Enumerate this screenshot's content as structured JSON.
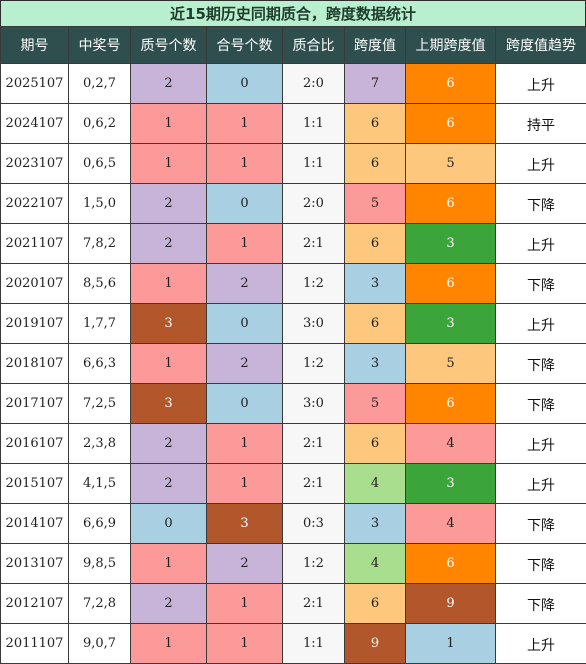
{
  "title": "近15期历史同期质合，跨度数据统计",
  "headers": [
    "期号",
    "中奖号",
    "质号个数",
    "合号个数",
    "质合比",
    "跨度值",
    "上期跨度值",
    "跨度值趋势"
  ],
  "rows": [
    {
      "period": "2025107",
      "numbers": "0,2,7",
      "prime_count": "2",
      "composite_count": "0",
      "ratio": "2:0",
      "span": "7",
      "prev_span": "6",
      "trend": "上升",
      "colors": [
        "purple",
        "blue",
        "plain",
        "purple",
        "orange"
      ]
    },
    {
      "period": "2024107",
      "numbers": "0,6,2",
      "prime_count": "1",
      "composite_count": "1",
      "ratio": "1:1",
      "span": "6",
      "prev_span": "6",
      "trend": "持平",
      "colors": [
        "pink",
        "pink",
        "plain",
        "sand",
        "orange"
      ]
    },
    {
      "period": "2023107",
      "numbers": "0,6,5",
      "prime_count": "1",
      "composite_count": "1",
      "ratio": "1:1",
      "span": "6",
      "prev_span": "5",
      "trend": "上升",
      "colors": [
        "pink",
        "pink",
        "plain",
        "sand",
        "sand"
      ]
    },
    {
      "period": "2022107",
      "numbers": "1,5,0",
      "prime_count": "2",
      "composite_count": "0",
      "ratio": "2:0",
      "span": "5",
      "prev_span": "6",
      "trend": "下降",
      "colors": [
        "purple",
        "blue",
        "plain",
        "pink",
        "orange"
      ]
    },
    {
      "period": "2021107",
      "numbers": "7,8,2",
      "prime_count": "2",
      "composite_count": "1",
      "ratio": "2:1",
      "span": "6",
      "prev_span": "3",
      "trend": "上升",
      "colors": [
        "purple",
        "pink",
        "plain",
        "sand",
        "green-d"
      ]
    },
    {
      "period": "2020107",
      "numbers": "8,5,6",
      "prime_count": "1",
      "composite_count": "2",
      "ratio": "1:2",
      "span": "3",
      "prev_span": "6",
      "trend": "下降",
      "colors": [
        "pink",
        "purple",
        "plain",
        "blue",
        "orange"
      ]
    },
    {
      "period": "2019107",
      "numbers": "1,7,7",
      "prime_count": "3",
      "composite_count": "0",
      "ratio": "3:0",
      "span": "6",
      "prev_span": "3",
      "trend": "上升",
      "colors": [
        "brown",
        "blue",
        "plain",
        "sand",
        "green-d"
      ]
    },
    {
      "period": "2018107",
      "numbers": "6,6,3",
      "prime_count": "1",
      "composite_count": "2",
      "ratio": "1:2",
      "span": "3",
      "prev_span": "5",
      "trend": "下降",
      "colors": [
        "pink",
        "purple",
        "plain",
        "blue",
        "sand"
      ]
    },
    {
      "period": "2017107",
      "numbers": "7,2,5",
      "prime_count": "3",
      "composite_count": "0",
      "ratio": "3:0",
      "span": "5",
      "prev_span": "6",
      "trend": "下降",
      "colors": [
        "brown",
        "blue",
        "plain",
        "pink",
        "orange"
      ]
    },
    {
      "period": "2016107",
      "numbers": "2,3,8",
      "prime_count": "2",
      "composite_count": "1",
      "ratio": "2:1",
      "span": "6",
      "prev_span": "4",
      "trend": "上升",
      "colors": [
        "purple",
        "pink",
        "plain",
        "sand",
        "pink"
      ]
    },
    {
      "period": "2015107",
      "numbers": "4,1,5",
      "prime_count": "2",
      "composite_count": "1",
      "ratio": "2:1",
      "span": "4",
      "prev_span": "3",
      "trend": "上升",
      "colors": [
        "purple",
        "pink",
        "plain",
        "green-l",
        "green-d"
      ]
    },
    {
      "period": "2014107",
      "numbers": "6,6,9",
      "prime_count": "0",
      "composite_count": "3",
      "ratio": "0:3",
      "span": "3",
      "prev_span": "4",
      "trend": "下降",
      "colors": [
        "blue",
        "brown",
        "plain",
        "blue",
        "pink"
      ]
    },
    {
      "period": "2013107",
      "numbers": "9,8,5",
      "prime_count": "1",
      "composite_count": "2",
      "ratio": "1:2",
      "span": "4",
      "prev_span": "6",
      "trend": "下降",
      "colors": [
        "pink",
        "purple",
        "plain",
        "green-l",
        "orange"
      ]
    },
    {
      "period": "2012107",
      "numbers": "7,2,8",
      "prime_count": "2",
      "composite_count": "1",
      "ratio": "2:1",
      "span": "6",
      "prev_span": "9",
      "trend": "下降",
      "colors": [
        "purple",
        "pink",
        "plain",
        "sand",
        "brown"
      ]
    },
    {
      "period": "2011107",
      "numbers": "9,0,7",
      "prime_count": "1",
      "composite_count": "1",
      "ratio": "1:1",
      "span": "9",
      "prev_span": "1",
      "trend": "上升",
      "colors": [
        "pink",
        "pink",
        "plain",
        "brown",
        "blue"
      ]
    }
  ],
  "palette": {
    "purple": "#c8b4d8",
    "blue": "#a8cfe2",
    "pink": "#fc9a9a",
    "brown": "#b1572b",
    "sand": "#fdc77e",
    "green-l": "#a9de8f",
    "orange": "#ff8400",
    "green-d": "#3ba43a",
    "header_bg": "#2f4f4f",
    "title_bg": "#b9efce"
  }
}
